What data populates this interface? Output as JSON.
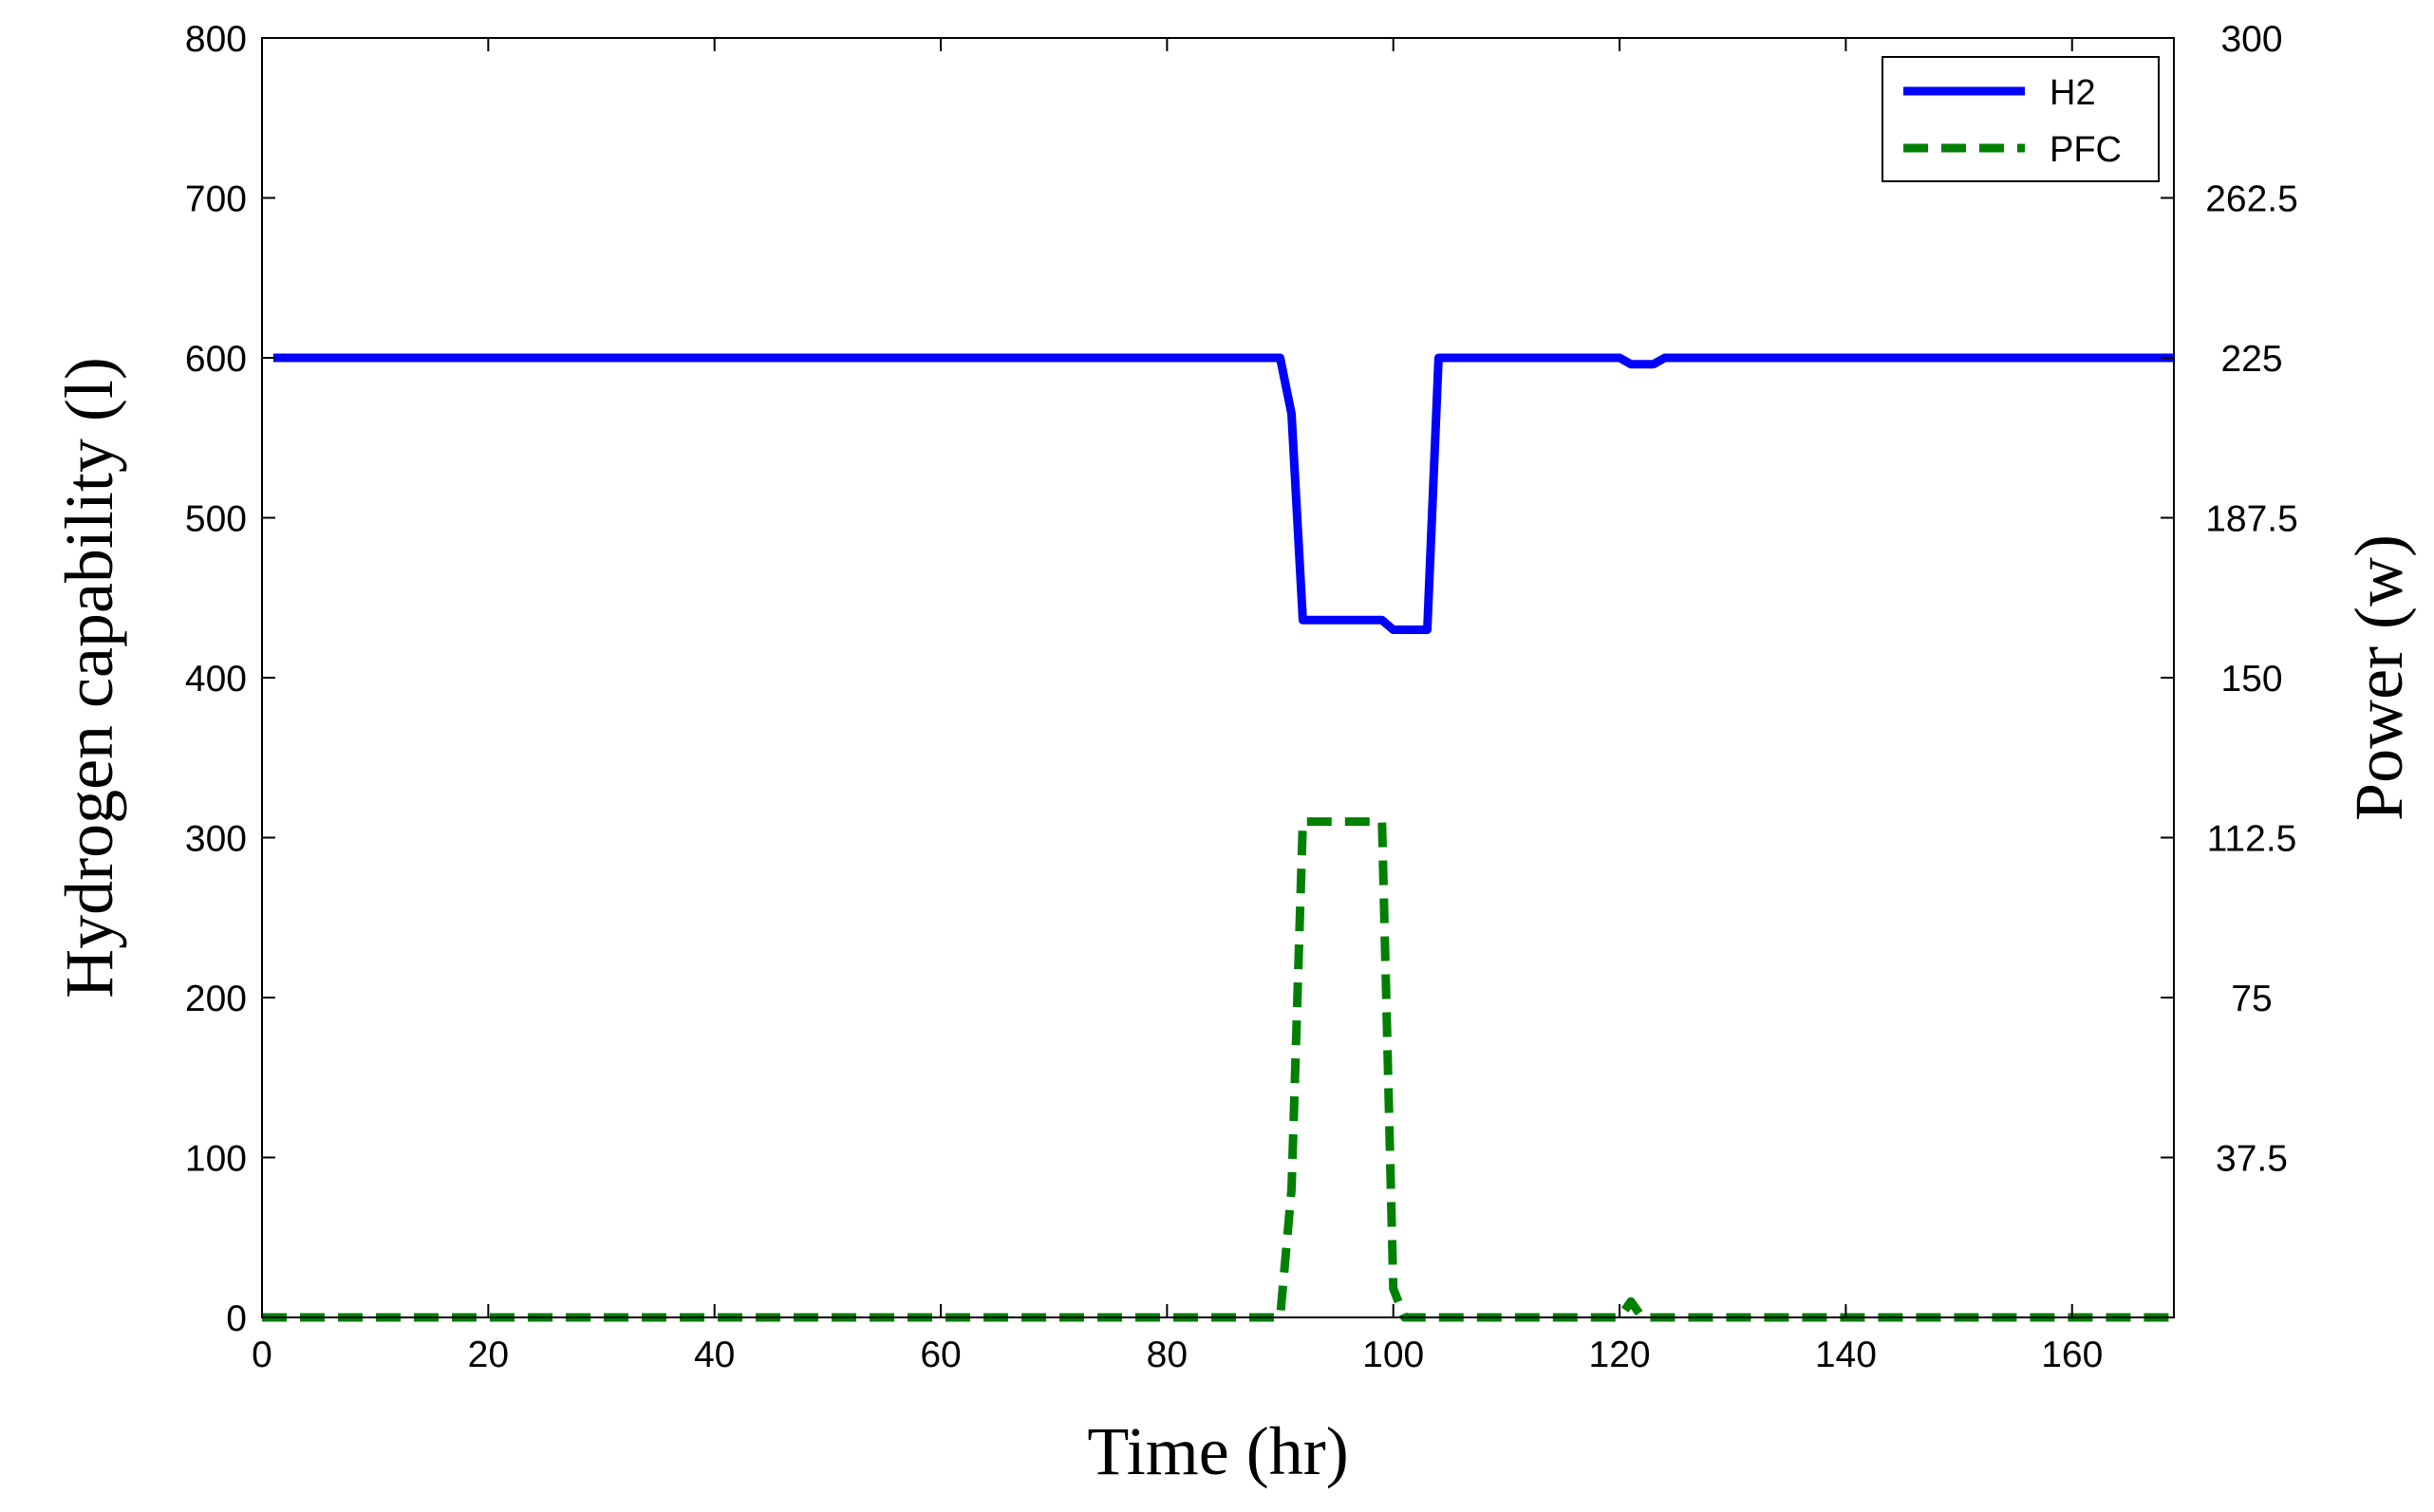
{
  "chart_data": {
    "type": "line",
    "xlabel": "Time (hr)",
    "ylabel_left": "Hydrogen capability (l)",
    "ylabel_right": "Power (w)",
    "xlim": [
      0,
      169
    ],
    "ylim_left": [
      0,
      800
    ],
    "ylim_right": [
      0,
      300
    ],
    "x_ticks": [
      0,
      20,
      40,
      60,
      80,
      100,
      120,
      140,
      160
    ],
    "y_left_ticks": [
      0,
      100,
      200,
      300,
      400,
      500,
      600,
      700,
      800
    ],
    "y_right_ticks": [
      {
        "value": 37.5,
        "label": "37.5"
      },
      {
        "value": 75,
        "label": "75"
      },
      {
        "value": 112.5,
        "label": "112.5"
      },
      {
        "value": 150,
        "label": "150"
      },
      {
        "value": 187.5,
        "label": "187.5"
      },
      {
        "value": 225,
        "label": "225"
      },
      {
        "value": 262.5,
        "label": "262.5"
      },
      {
        "value": 300,
        "label": "300"
      }
    ],
    "grid": false,
    "legend_position": "top-right",
    "series": [
      {
        "name": "H2",
        "axis": "left",
        "color": "#0000ff",
        "style": "solid",
        "x": [
          1,
          90,
          91,
          92,
          99,
          100,
          103,
          104,
          120,
          121,
          122,
          123,
          124,
          169
        ],
        "y": [
          600,
          600,
          565,
          436,
          436,
          430,
          430,
          600,
          600,
          596,
          596,
          596,
          600,
          600
        ]
      },
      {
        "name": "PFC",
        "axis": "left",
        "color": "#008000",
        "style": "dashed",
        "x": [
          0,
          90,
          91,
          92,
          99,
          100,
          101,
          120,
          121,
          122,
          169
        ],
        "y": [
          0,
          0,
          80,
          310,
          310,
          18,
          0,
          0,
          10,
          0,
          0
        ]
      }
    ]
  }
}
